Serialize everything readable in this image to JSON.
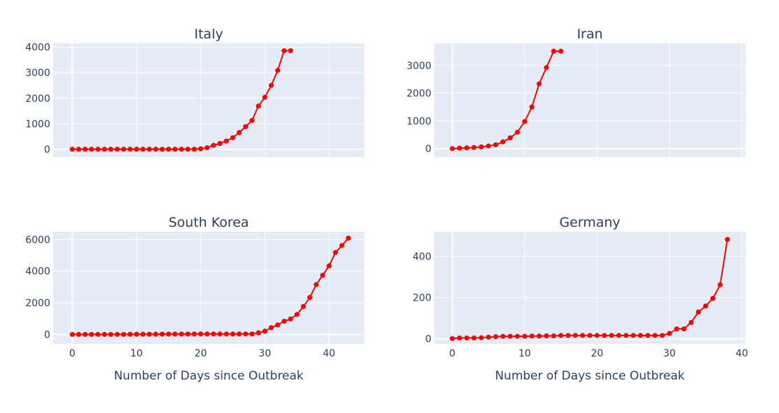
{
  "chart_data": [
    {
      "type": "line",
      "title": "Italy",
      "xlabel": "",
      "ylabel": "",
      "xlim": [
        -3,
        45.5
      ],
      "ylim": [
        -300,
        4150
      ],
      "xticks": [
        0,
        10,
        20,
        30,
        40
      ],
      "yticks": [
        0,
        1000,
        2000,
        3000,
        4000
      ],
      "show_xtick_labels": false,
      "grid": true,
      "color": "#ff0000",
      "x": [
        0,
        1,
        2,
        3,
        4,
        5,
        6,
        7,
        8,
        9,
        10,
        11,
        12,
        13,
        14,
        15,
        16,
        17,
        18,
        19,
        20,
        21,
        22,
        23,
        24,
        25,
        26,
        27,
        28,
        29,
        30,
        31,
        32,
        33,
        34
      ],
      "values": [
        3,
        3,
        3,
        3,
        3,
        3,
        3,
        3,
        3,
        3,
        3,
        3,
        3,
        3,
        3,
        3,
        3,
        3,
        3,
        3,
        20,
        62,
        155,
        229,
        322,
        453,
        655,
        888,
        1128,
        1694,
        2036,
        2502,
        3089,
        3858,
        3858
      ]
    },
    {
      "type": "line",
      "title": "Iran",
      "xlabel": "",
      "ylabel": "",
      "xlim": [
        -2.5,
        40.5
      ],
      "ylim": [
        -300,
        3800
      ],
      "xticks": [
        0,
        10,
        20,
        30,
        40
      ],
      "yticks": [
        0,
        1000,
        2000,
        3000
      ],
      "show_xtick_labels": false,
      "grid": true,
      "color": "#ff0000",
      "x": [
        0,
        1,
        2,
        3,
        4,
        5,
        6,
        7,
        8,
        9,
        10,
        11,
        12,
        13,
        14,
        15
      ],
      "values": [
        2,
        18,
        28,
        43,
        61,
        95,
        139,
        245,
        388,
        593,
        978,
        1501,
        2336,
        2922,
        3513,
        3513
      ]
    },
    {
      "type": "line",
      "title": "South Korea",
      "xlabel": "Number of Days since Outbreak",
      "ylabel": "",
      "xlim": [
        -3,
        45.5
      ],
      "ylim": [
        -600,
        6500
      ],
      "xticks": [
        0,
        10,
        20,
        30,
        40
      ],
      "yticks": [
        0,
        2000,
        4000,
        6000
      ],
      "show_xtick_labels": true,
      "grid": true,
      "color": "#ff0000",
      "x": [
        0,
        1,
        2,
        3,
        4,
        5,
        6,
        7,
        8,
        9,
        10,
        11,
        12,
        13,
        14,
        15,
        16,
        17,
        18,
        19,
        20,
        21,
        22,
        23,
        24,
        25,
        26,
        27,
        28,
        29,
        30,
        31,
        32,
        33,
        34,
        35,
        36,
        37,
        38,
        39,
        40,
        41,
        42,
        43
      ],
      "values": [
        1,
        1,
        2,
        2,
        3,
        4,
        4,
        4,
        4,
        11,
        12,
        15,
        15,
        16,
        19,
        23,
        24,
        24,
        25,
        27,
        28,
        28,
        28,
        28,
        28,
        29,
        30,
        31,
        31,
        104,
        204,
        433,
        602,
        833,
        977,
        1261,
        1766,
        2337,
        3150,
        3736,
        4335,
        5186,
        5621,
        6088
      ]
    },
    {
      "type": "line",
      "title": "Germany",
      "xlabel": "Number of Days since Outbreak",
      "ylabel": "",
      "xlim": [
        -2.5,
        40.5
      ],
      "ylim": [
        -25,
        520
      ],
      "xticks": [
        0,
        10,
        20,
        30,
        40
      ],
      "yticks": [
        0,
        200,
        400
      ],
      "show_xtick_labels": true,
      "grid": true,
      "color": "#ff0000",
      "x": [
        0,
        1,
        2,
        3,
        4,
        5,
        6,
        7,
        8,
        9,
        10,
        11,
        12,
        13,
        14,
        15,
        16,
        17,
        18,
        19,
        20,
        21,
        22,
        23,
        24,
        25,
        26,
        27,
        28,
        29,
        30,
        31,
        32,
        33,
        34,
        35,
        36,
        37,
        38
      ],
      "values": [
        1,
        4,
        4,
        4,
        5,
        8,
        10,
        12,
        12,
        12,
        12,
        13,
        13,
        14,
        14,
        16,
        16,
        16,
        16,
        16,
        16,
        16,
        16,
        16,
        16,
        16,
        16,
        16,
        16,
        16,
        26,
        48,
        48,
        79,
        130,
        159,
        196,
        262,
        482
      ]
    }
  ]
}
